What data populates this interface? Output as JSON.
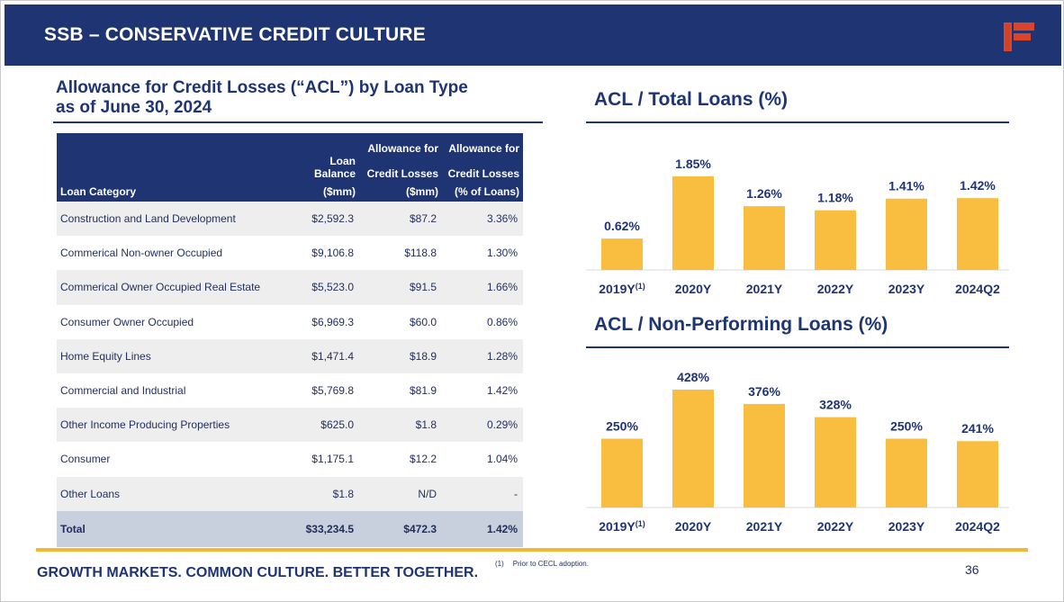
{
  "header": {
    "title": "SSB – CONSERVATIVE CREDIT CULTURE"
  },
  "left": {
    "title_line1": "Allowance for Credit Losses (“ACL”) by Loan Type",
    "title_line2": "as of June 30, 2024"
  },
  "table": {
    "headers": {
      "category": "Loan Category",
      "balance_l3a": "Loan Balance",
      "balance_l3b": "($mm)",
      "acl_l1": "Allowance for",
      "acl_l2": "Credit Losses",
      "acl_l3": "($mm)",
      "pct_l1": "Allowance for",
      "pct_l2": "Credit Losses",
      "pct_l3": "(% of Loans)"
    },
    "rows": [
      {
        "category": "Construction and Land Development",
        "balance": "$2,592.3",
        "acl": "$87.2",
        "pct": "3.36%"
      },
      {
        "category": "Commerical Non-owner Occupied",
        "balance": "$9,106.8",
        "acl": "$118.8",
        "pct": "1.30%"
      },
      {
        "category": "Commerical Owner Occupied Real Estate",
        "balance": "$5,523.0",
        "acl": "$91.5",
        "pct": "1.66%"
      },
      {
        "category": "Consumer Owner Occupied",
        "balance": "$6,969.3",
        "acl": "$60.0",
        "pct": "0.86%"
      },
      {
        "category": "Home Equity Lines",
        "balance": "$1,471.4",
        "acl": "$18.9",
        "pct": "1.28%"
      },
      {
        "category": "Commercial and Industrial",
        "balance": "$5,769.8",
        "acl": "$81.9",
        "pct": "1.42%"
      },
      {
        "category": "Other Income Producing Properties",
        "balance": "$625.0",
        "acl": "$1.8",
        "pct": "0.29%"
      },
      {
        "category": "Consumer",
        "balance": "$1,175.1",
        "acl": "$12.2",
        "pct": "1.04%"
      },
      {
        "category": "Other Loans",
        "balance": "$1.8",
        "acl": "N/D",
        "pct": "-"
      }
    ],
    "total": {
      "category": "Total",
      "balance": "$33,234.5",
      "acl": "$472.3",
      "pct": "1.42%"
    }
  },
  "chart_data": [
    {
      "type": "bar",
      "title": "ACL / Total Loans (%)",
      "categories": [
        "2019Y",
        "2020Y",
        "2021Y",
        "2022Y",
        "2023Y",
        "2024Q2"
      ],
      "category_superscripts": [
        "(1)",
        "",
        "",
        "",
        "",
        ""
      ],
      "values": [
        0.62,
        1.85,
        1.26,
        1.18,
        1.41,
        1.42
      ],
      "data_labels": [
        "0.62%",
        "1.85%",
        "1.26%",
        "1.18%",
        "1.41%",
        "1.42%"
      ],
      "xlabel": "",
      "ylabel": "",
      "ylim": [
        0,
        1.85
      ],
      "grid": false,
      "legend": "none",
      "bar_color": "#f9be3f"
    },
    {
      "type": "bar",
      "title": "ACL / Non-Performing Loans (%)",
      "categories": [
        "2019Y",
        "2020Y",
        "2021Y",
        "2022Y",
        "2023Y",
        "2024Q2"
      ],
      "category_superscripts": [
        "(1)",
        "",
        "",
        "",
        "",
        ""
      ],
      "values": [
        250,
        428,
        376,
        328,
        250,
        241
      ],
      "data_labels": [
        "250%",
        "428%",
        "376%",
        "328%",
        "250%",
        "241%"
      ],
      "xlabel": "",
      "ylabel": "",
      "ylim": [
        0,
        428
      ],
      "grid": false,
      "legend": "none",
      "bar_color": "#f9be3f"
    }
  ],
  "footer": {
    "tagline": "GROWTH MARKETS. COMMON CULTURE. BETTER TOGETHER.",
    "footnote_mark": "(1)",
    "footnote_text": "Prior to CECL adoption.",
    "page_number": "36"
  },
  "colors": {
    "navy": "#1f3473",
    "gold": "#f5b731",
    "bar": "#f9be3f",
    "logo": "#d9452b"
  },
  "icons": {
    "logo": "company-logo-f-icon"
  }
}
